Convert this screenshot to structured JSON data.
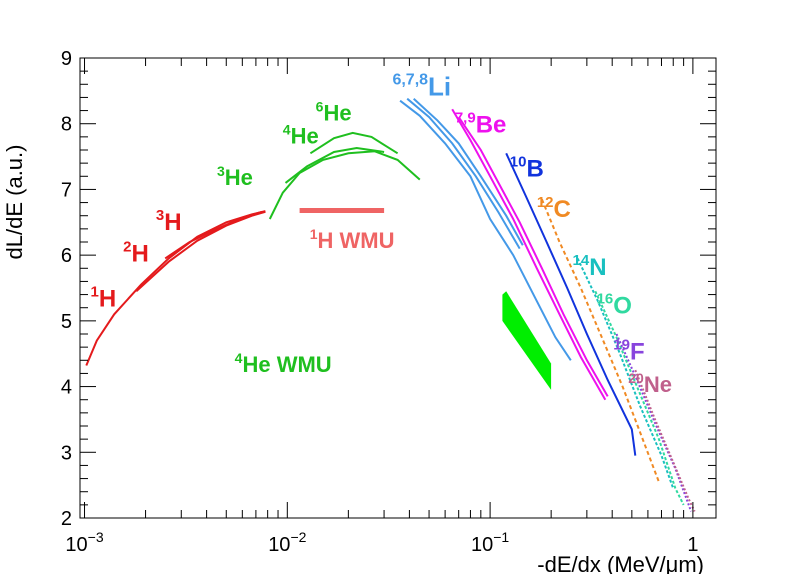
{
  "chart_data": {
    "type": "line",
    "xlabel": "-dE/dx (MeV/μm)",
    "ylabel": "dL/dE (a.u.)",
    "xscale": "log",
    "xlim": [
      0.00095,
      1.3
    ],
    "ylim": [
      2,
      9
    ],
    "grid": false,
    "x_ticks": [
      {
        "v": 0.001,
        "base": "10",
        "exp": "−3"
      },
      {
        "v": 0.01,
        "base": "10",
        "exp": "−2"
      },
      {
        "v": 0.1,
        "base": "10",
        "exp": "−1"
      },
      {
        "v": 1,
        "base": "1",
        "exp": ""
      }
    ],
    "y_ticks": [
      "2",
      "3",
      "4",
      "5",
      "6",
      "7",
      "8",
      "9"
    ],
    "series": [
      {
        "name": "1H",
        "color": "#e41a1c",
        "dash": "",
        "points": [
          [
            0.00102,
            4.32
          ],
          [
            0.00115,
            4.7
          ],
          [
            0.0014,
            5.1
          ],
          [
            0.0019,
            5.55
          ],
          [
            0.0026,
            5.95
          ],
          [
            0.0036,
            6.28
          ],
          [
            0.005,
            6.5
          ],
          [
            0.0067,
            6.62
          ],
          [
            0.0078,
            6.67
          ]
        ]
      },
      {
        "name": "2H",
        "color": "#e41a1c",
        "dash": "",
        "points": [
          [
            0.0018,
            5.45
          ],
          [
            0.0026,
            5.9
          ],
          [
            0.0036,
            6.22
          ],
          [
            0.005,
            6.45
          ],
          [
            0.0067,
            6.6
          ],
          [
            0.0078,
            6.66
          ]
        ]
      },
      {
        "name": "3H",
        "color": "#e41a1c",
        "dash": "",
        "points": [
          [
            0.0025,
            5.95
          ],
          [
            0.0033,
            6.2
          ],
          [
            0.0045,
            6.4
          ],
          [
            0.006,
            6.57
          ],
          [
            0.0075,
            6.66
          ]
        ]
      },
      {
        "name": "3He",
        "color": "#1fbf1f",
        "dash": "",
        "points": [
          [
            0.0082,
            6.55
          ],
          [
            0.0095,
            6.95
          ],
          [
            0.0115,
            7.25
          ],
          [
            0.015,
            7.45
          ],
          [
            0.02,
            7.55
          ],
          [
            0.027,
            7.58
          ],
          [
            0.035,
            7.45
          ],
          [
            0.045,
            7.15
          ]
        ]
      },
      {
        "name": "4He",
        "color": "#1fbf1f",
        "dash": "",
        "points": [
          [
            0.0098,
            7.1
          ],
          [
            0.0125,
            7.35
          ],
          [
            0.017,
            7.57
          ],
          [
            0.022,
            7.63
          ],
          [
            0.03,
            7.57
          ]
        ]
      },
      {
        "name": "6He",
        "color": "#1fbf1f",
        "dash": "",
        "points": [
          [
            0.013,
            7.55
          ],
          [
            0.017,
            7.78
          ],
          [
            0.021,
            7.86
          ],
          [
            0.026,
            7.8
          ],
          [
            0.031,
            7.65
          ],
          [
            0.035,
            7.55
          ]
        ]
      },
      {
        "name": "6Li",
        "color": "#4499e8",
        "dash": "",
        "points": [
          [
            0.036,
            8.35
          ],
          [
            0.045,
            8.12
          ],
          [
            0.06,
            7.7
          ],
          [
            0.08,
            7.2
          ],
          [
            0.1,
            6.55
          ],
          [
            0.13,
            6.0
          ],
          [
            0.17,
            5.3
          ],
          [
            0.21,
            4.75
          ],
          [
            0.25,
            4.4
          ]
        ]
      },
      {
        "name": "7Li",
        "color": "#4499e8",
        "dash": "",
        "points": [
          [
            0.039,
            8.38
          ],
          [
            0.05,
            8.1
          ],
          [
            0.065,
            7.7
          ],
          [
            0.085,
            7.2
          ],
          [
            0.11,
            6.65
          ],
          [
            0.14,
            6.1
          ]
        ]
      },
      {
        "name": "8Li",
        "color": "#4499e8",
        "dash": "",
        "points": [
          [
            0.042,
            8.38
          ],
          [
            0.055,
            8.05
          ],
          [
            0.07,
            7.7
          ],
          [
            0.09,
            7.2
          ],
          [
            0.12,
            6.6
          ],
          [
            0.145,
            6.15
          ]
        ]
      },
      {
        "name": "7Be",
        "color": "#ee11ee",
        "dash": "",
        "points": [
          [
            0.065,
            8.22
          ],
          [
            0.08,
            7.75
          ],
          [
            0.1,
            7.2
          ],
          [
            0.13,
            6.55
          ],
          [
            0.17,
            5.8
          ],
          [
            0.22,
            5.1
          ],
          [
            0.28,
            4.45
          ],
          [
            0.37,
            3.8
          ]
        ]
      },
      {
        "name": "9Be",
        "color": "#ee11ee",
        "dash": "",
        "points": [
          [
            0.07,
            8.1
          ],
          [
            0.09,
            7.6
          ],
          [
            0.11,
            7.1
          ],
          [
            0.14,
            6.5
          ],
          [
            0.18,
            5.8
          ],
          [
            0.23,
            5.1
          ],
          [
            0.3,
            4.4
          ],
          [
            0.38,
            3.85
          ]
        ]
      },
      {
        "name": "10B",
        "color": "#1133dd",
        "dash": "",
        "points": [
          [
            0.12,
            7.55
          ],
          [
            0.15,
            6.9
          ],
          [
            0.19,
            6.2
          ],
          [
            0.24,
            5.5
          ],
          [
            0.3,
            4.8
          ],
          [
            0.38,
            4.1
          ],
          [
            0.5,
            3.35
          ],
          [
            0.52,
            2.95
          ]
        ]
      },
      {
        "name": "12C",
        "color": "#f08a24",
        "dash": "4,3",
        "points": [
          [
            0.18,
            6.85
          ],
          [
            0.22,
            6.2
          ],
          [
            0.28,
            5.5
          ],
          [
            0.35,
            4.8
          ],
          [
            0.45,
            4.0
          ],
          [
            0.55,
            3.3
          ],
          [
            0.68,
            2.55
          ]
        ]
      },
      {
        "name": "14N",
        "color": "#19c0c0",
        "dash": "3,2",
        "points": [
          [
            0.27,
            5.95
          ],
          [
            0.34,
            5.3
          ],
          [
            0.43,
            4.55
          ],
          [
            0.55,
            3.7
          ],
          [
            0.7,
            2.95
          ],
          [
            0.8,
            2.45
          ]
        ]
      },
      {
        "name": "16O",
        "color": "#30d9a0",
        "dash": "3,2",
        "points": [
          [
            0.33,
            5.45
          ],
          [
            0.42,
            4.75
          ],
          [
            0.53,
            4.0
          ],
          [
            0.68,
            3.2
          ],
          [
            0.82,
            2.45
          ],
          [
            0.9,
            2.2
          ]
        ]
      },
      {
        "name": "19F",
        "color": "#8844dd",
        "dash": "2,2",
        "points": [
          [
            0.42,
            4.8
          ],
          [
            0.53,
            4.1
          ],
          [
            0.66,
            3.4
          ],
          [
            0.82,
            2.75
          ],
          [
            0.98,
            2.1
          ]
        ]
      },
      {
        "name": "20Ne",
        "color": "#c0608c",
        "dash": "2,2",
        "points": [
          [
            0.52,
            4.25
          ],
          [
            0.65,
            3.5
          ],
          [
            0.8,
            2.85
          ],
          [
            0.95,
            2.3
          ],
          [
            1.02,
            2.1
          ]
        ]
      },
      {
        "name": "1H WMU",
        "color": "#ef6464",
        "dash": "",
        "width": 5,
        "points": [
          [
            0.0115,
            6.68
          ],
          [
            0.03,
            6.68
          ]
        ]
      }
    ],
    "bands": [
      {
        "name": "4He WMU",
        "color": "#00ee00",
        "polygon": [
          [
            0.115,
            5.4
          ],
          [
            0.12,
            5.45
          ],
          [
            0.2,
            4.35
          ],
          [
            0.2,
            3.95
          ],
          [
            0.115,
            5.0
          ]
        ]
      }
    ],
    "annotations": [
      {
        "id": "ann-1h",
        "color": "#e41a1c",
        "sup": "1",
        "main": "H",
        "x": 0.00107,
        "y": 5.22,
        "size": 24
      },
      {
        "id": "ann-2h",
        "color": "#e41a1c",
        "sup": "2",
        "main": "H",
        "x": 0.00155,
        "y": 5.9,
        "size": 24
      },
      {
        "id": "ann-3h",
        "color": "#e41a1c",
        "sup": "3",
        "main": "H",
        "x": 0.00225,
        "y": 6.38,
        "size": 24
      },
      {
        "id": "ann-3he",
        "color": "#1fbf1f",
        "sup": "3",
        "main": "He",
        "x": 0.0045,
        "y": 7.07,
        "size": 22
      },
      {
        "id": "ann-4he",
        "color": "#1fbf1f",
        "sup": "4",
        "main": "He",
        "x": 0.0095,
        "y": 7.7,
        "size": 22
      },
      {
        "id": "ann-6he",
        "color": "#1fbf1f",
        "sup": "6",
        "main": "He",
        "x": 0.0138,
        "y": 8.05,
        "size": 22
      },
      {
        "id": "ann-li",
        "color": "#4499e8",
        "sup": "6,7,8",
        "main": "Li",
        "x": 0.033,
        "y": 8.43,
        "size": 26
      },
      {
        "id": "ann-be",
        "color": "#ee11ee",
        "sup": "7,9",
        "main": "Be",
        "x": 0.067,
        "y": 7.87,
        "size": 24
      },
      {
        "id": "ann-b",
        "color": "#1133dd",
        "sup": "10",
        "main": "B",
        "x": 0.125,
        "y": 7.2,
        "size": 24
      },
      {
        "id": "ann-c",
        "color": "#f08a24",
        "sup": "12",
        "main": "C",
        "x": 0.17,
        "y": 6.58,
        "size": 24
      },
      {
        "id": "ann-n",
        "color": "#19c0c0",
        "sup": "14",
        "main": "N",
        "x": 0.255,
        "y": 5.7,
        "size": 24
      },
      {
        "id": "ann-o",
        "color": "#30d9a0",
        "sup": "16",
        "main": "O",
        "x": 0.335,
        "y": 5.11,
        "size": 24
      },
      {
        "id": "ann-f",
        "color": "#8844dd",
        "sup": "19",
        "main": "F",
        "x": 0.405,
        "y": 4.41,
        "size": 24
      },
      {
        "id": "ann-ne",
        "color": "#c0608c",
        "sup": "20",
        "main": "Ne",
        "x": 0.48,
        "y": 3.92,
        "size": 22
      },
      {
        "id": "ann-1h-wmu",
        "color": "#ef6464",
        "sup": "1",
        "main": "H WMU",
        "x": 0.0129,
        "y": 6.11,
        "size": 22
      },
      {
        "id": "ann-4he-wmu",
        "color": "#1fbf1f",
        "sup": "4",
        "main": "He WMU",
        "x": 0.0055,
        "y": 4.22,
        "size": 22
      }
    ]
  }
}
